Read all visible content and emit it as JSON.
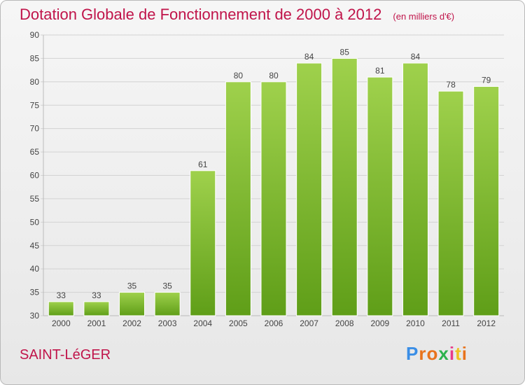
{
  "chart_data": {
    "type": "bar",
    "title": "Dotation Globale de Fonctionnement de 2000 à 2012",
    "subtitle": "(en milliers d'€)",
    "categories": [
      "2000",
      "2001",
      "2002",
      "2003",
      "2004",
      "2005",
      "2006",
      "2007",
      "2008",
      "2009",
      "2010",
      "2011",
      "2012"
    ],
    "values": [
      33,
      33,
      35,
      35,
      61,
      80,
      80,
      84,
      85,
      81,
      84,
      78,
      79
    ],
    "ylim": [
      30,
      90
    ],
    "yticks": [
      30,
      35,
      40,
      45,
      50,
      55,
      60,
      65,
      70,
      75,
      80,
      85,
      90
    ],
    "grid": true,
    "bar_color": "#7fc03a"
  },
  "place_name": "SAINT-LéGER",
  "logo": {
    "text": "Proxiti",
    "colors": [
      "#3a8ee6",
      "#e8731c",
      "#e8731c",
      "#2bb24c",
      "#e83a8a",
      "#f0c020",
      "#e8731c"
    ]
  }
}
